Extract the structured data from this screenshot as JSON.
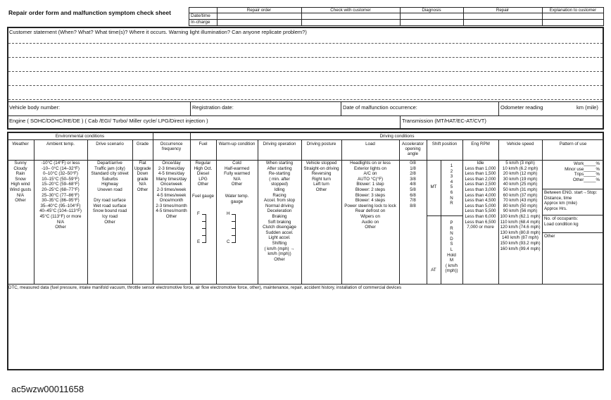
{
  "header": {
    "title": "Repair order form and malfunction symptom check sheet",
    "columns": [
      "Repair order",
      "Check with customer",
      "Diagnosis",
      "Repair",
      "Explanation to customer"
    ],
    "rows": [
      "Date/time",
      "In-charge"
    ]
  },
  "statement": {
    "prompt": "Customer statement (When? What? What time(s)? Where it occurs. Warning light illumination? Can anyone replicate problem?)",
    "vehicle_body": "Vehicle body number:",
    "registration": "Registration date:",
    "malfunction_date": "Date of malfunction occurrence:",
    "odometer": "Odometer reading",
    "odometer_unit": "km (mile)",
    "engine": "Engine ( SOHC/DOHC/RE/DE ) ( Cab /EGI/ Turbo/ Miller cycle/ LPG/Direct injection )",
    "transmission": "Transmission (MT/HAT/EC-AT/CVT)"
  },
  "conditions": {
    "environmental": "Environmental conditions",
    "driving": "Driving conditions",
    "columns": [
      {
        "header": "Weather",
        "groups": [
          [
            "Sunny",
            "Cloudy",
            "Rain",
            "Snow",
            "High wind",
            "Wind gusts",
            "N/A",
            "Other"
          ]
        ]
      },
      {
        "header": "Ambient temp.",
        "groups": [
          [
            "-10°C (14°F) or less",
            "-10– 0°C (14–32°F)",
            "0–10°C (32–50°F)",
            "10–15°C (50–59°F)",
            "15–20°C (59–68°F)",
            "20–25°C (68–77°F)",
            "25–30°C (77–86°F)",
            "30–35°C (86–95°F)",
            "35–40°C (95–104°F)",
            "40–45°C (104–113°F)",
            "45°C (113°F) or more",
            "N/A",
            "Other"
          ]
        ]
      },
      {
        "header": "Drive scenario",
        "groups": [
          [
            "Depart/arrive",
            "Traffic jam (city)",
            "Standard city street",
            "Suburbs",
            "Highway",
            "Uneven road"
          ],
          [
            "Dry road surface",
            "Wet road surface",
            "Snow bound road",
            "Icy road",
            "Other"
          ]
        ]
      },
      {
        "header": "Grade",
        "groups": [
          [
            "Flat",
            "Upgrade",
            "Down",
            "grade",
            "N/A",
            "Other"
          ]
        ]
      },
      {
        "header": "Occurrence frequency",
        "groups": [
          [
            "Once/day",
            "2-3 times/day",
            "4-5 times/day",
            "Many times/day",
            "Once/week",
            "2-3 times/week",
            "4-5 times/week",
            "Once/month",
            "2-3 times/month",
            "4-5 times/month",
            "Other"
          ]
        ]
      },
      {
        "header": "Fuel",
        "groups": [
          [
            "Regular",
            "High Oct.",
            "Diesel",
            "LPG",
            "Other"
          ],
          [
            "Fuel gauge"
          ]
        ],
        "gauge": [
          "F",
          "E"
        ]
      },
      {
        "header": "Warm-up condition",
        "groups": [
          [
            "Cold",
            "Half-warmed",
            "Fully warmed",
            "N/A",
            "Other"
          ],
          [
            "Water temp.",
            "gauge"
          ]
        ],
        "gauge": [
          "H",
          "C"
        ]
      },
      {
        "header": "Driving operation",
        "groups": [
          [
            "When starting",
            "After starting",
            "Re-starting",
            "(    min. after",
            "stopped)",
            "Idling",
            "Racing",
            "Accel. from stop",
            "Normal driving",
            "Deceleration",
            "Braking",
            "Soft braking",
            "Clutch disengage",
            "Sudden accel.",
            "Light accel.",
            "Shifting",
            "(  km/h (mph) →",
            "km/h (mph))",
            "Other"
          ]
        ]
      },
      {
        "header": "Driving posture",
        "groups": [
          [
            "Vehicle stopped",
            "Straight-on driving",
            "Reversing",
            "Right turn",
            "Left turn",
            "Other"
          ]
        ]
      },
      {
        "header": "Load",
        "groups": [
          [
            "Headlights on or less",
            "Exterior lights on",
            "A/C on",
            "AUTO     °C(°F)",
            "Blower: 1 step",
            "Blower: 2 steps",
            "Blower: 3 steps",
            "Blower: 4 steps",
            "Power steering lock to lock",
            "Rear defrost on",
            "Wipers on",
            "Audio on",
            "Other"
          ]
        ]
      },
      {
        "header": "Accelerator opening angle",
        "groups": [
          [
            "0/8",
            "1/8",
            "2/8",
            "3/8",
            "4/8",
            "5/8",
            "6/8",
            "7/8",
            "8/8"
          ]
        ]
      },
      {
        "header": "Shift position",
        "mt": {
          "label": "MT",
          "items": [
            "1",
            "2",
            "3",
            "4",
            "5",
            "6",
            "N",
            "R"
          ]
        },
        "at": {
          "label": "AT",
          "items": [
            "P",
            "R",
            "N",
            "D",
            "S",
            "L",
            "Hold",
            "M",
            "(   km/h",
            "(mph))"
          ]
        }
      },
      {
        "header": "Eng RPM",
        "groups": [
          [
            "Idle",
            "Less than 1,000",
            "Less than 1,500",
            "Less than 2,000",
            "Less than 2,500",
            "Less than 3,000",
            "Less than 4,000",
            "Less than 4,500",
            "Less than 5,000",
            "Less than 5,500",
            "Less than 6,000",
            "Less than 6,500",
            "7,000 or more"
          ]
        ]
      },
      {
        "header": "Vehicle speed",
        "groups": [
          [
            "5 km/h (3 mph)",
            "10 km/h (6.2 mph)",
            "20 km/h (12 mph)",
            "30 km/h (19 mph)",
            "40 km/h (25 mph)",
            "50 km/h (31 mph)",
            "60 km/h (37 mph)",
            "70 km/h (43 mph)",
            "80 km/h (50 mph)",
            "90 km/h (56 mph)",
            "100 km/h (62.1 mph)",
            "110 km/h (68.4 mph)",
            "120 km/h (74.6 mph)",
            "130 km/h (80.8 mph)",
            "140 km/h (87 mph)",
            "150 km/h (93.2 mph)",
            "160 km/h (99.4 mph)"
          ]
        ]
      },
      {
        "header": "Pattern of use",
        "sections": [
          [
            "Work_____%",
            "Minor use_____%",
            "Trips_____%",
            "Other_____%"
          ],
          [
            "Between ENG. start→Stop:",
            "Distance, time",
            "Approx            km (mile)",
            "Approx                   Hrs."
          ],
          [
            "No. of occupants:",
            "Load condition          kg"
          ],
          [
            "Other"
          ]
        ]
      }
    ],
    "dtc": "DTC, measured data (fuel pressure, intake manifold vacuum, throttle sensor electromotive force, air flow electromotive force, other), maintenance, repair, accident history, installation of commercial devices"
  },
  "footer": {
    "code": "ac5wzw00011658"
  }
}
